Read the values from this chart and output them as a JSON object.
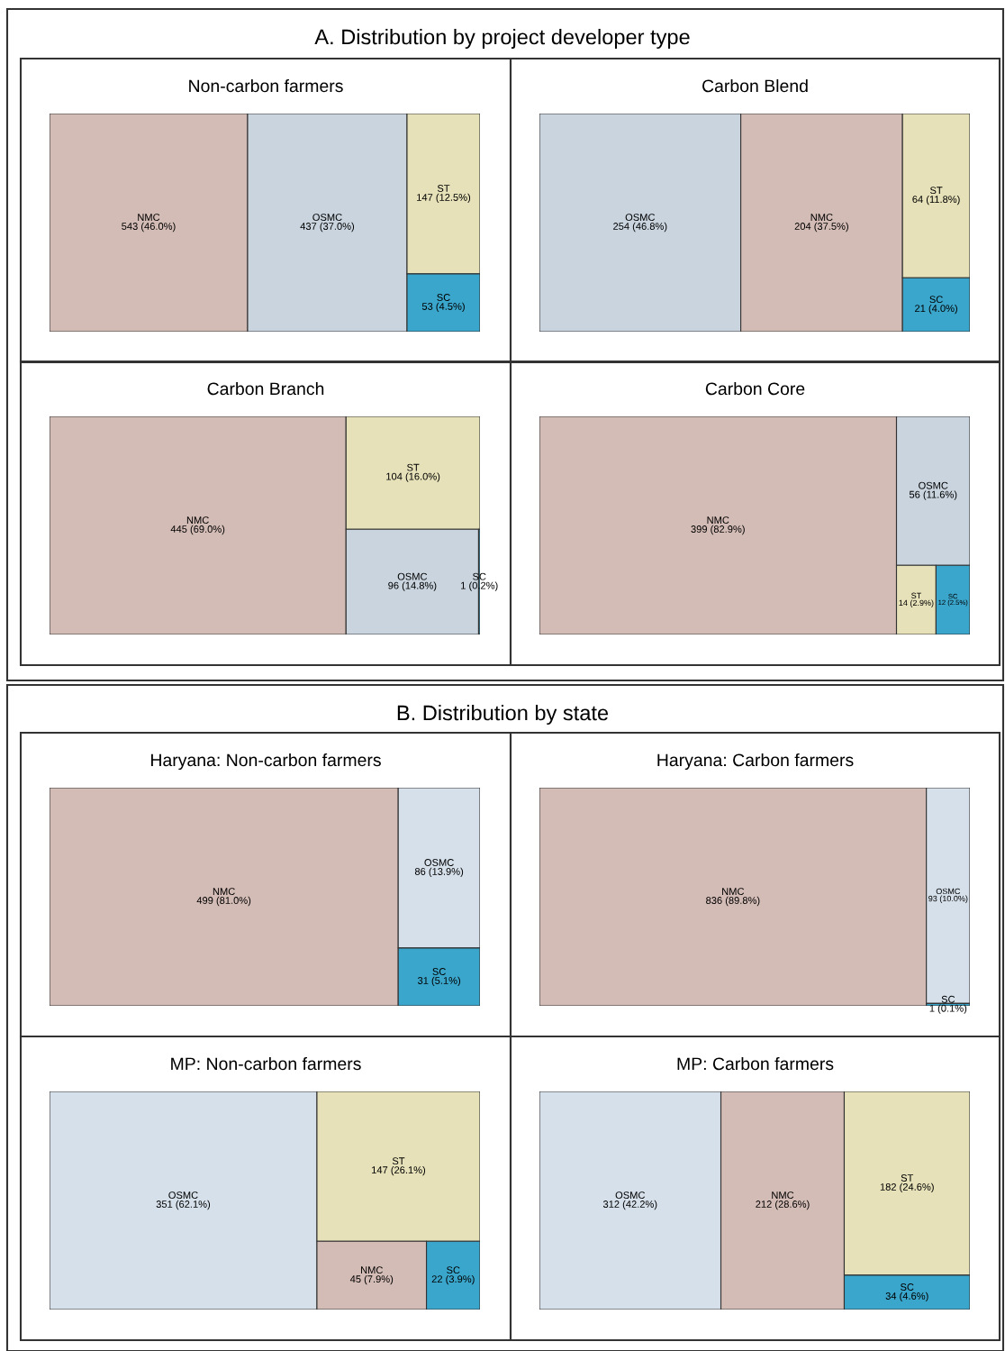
{
  "chart_data": [
    {
      "type": "other",
      "title": "Non-carbon farmers",
      "annotations": [
        "A. Distribution by project developer type"
      ],
      "categories": [
        "NMC",
        "OSMC",
        "ST",
        "SC"
      ],
      "values": [
        543,
        437,
        147,
        53
      ],
      "value_labels": [
        "543 (46.0%)",
        "437 (37.0%)",
        "147 (12.5%)",
        "53 (4.5%)"
      ],
      "colors": [
        "#d4bcb6",
        "#c9d4de",
        "#e6e1b8",
        "#3aa6cc"
      ]
    },
    {
      "type": "other",
      "title": "Carbon Blend",
      "categories": [
        "OSMC",
        "NMC",
        "ST",
        "SC"
      ],
      "values": [
        254,
        204,
        64,
        21
      ],
      "value_labels": [
        "254 (46.8%)",
        "204 (37.5%)",
        "64 (11.8%)",
        "21 (4.0%)"
      ],
      "colors": [
        "#c9d4de",
        "#d4bcb6",
        "#e6e1b8",
        "#3aa6cc"
      ]
    },
    {
      "type": "other",
      "title": "Carbon Branch",
      "categories": [
        "NMC",
        "ST",
        "OSMC",
        "SC"
      ],
      "values": [
        445,
        104,
        96,
        1
      ],
      "value_labels": [
        "445 (69.0%)",
        "104 (16.0%)",
        "96 (14.8%)",
        "1 (0.2%)"
      ],
      "colors": [
        "#d4bcb6",
        "#e6e1b8",
        "#c9d4de",
        "#3aa6cc"
      ]
    },
    {
      "type": "other",
      "title": "Carbon Core",
      "categories": [
        "NMC",
        "OSMC",
        "ST",
        "SC"
      ],
      "values": [
        399,
        56,
        14,
        12
      ],
      "value_labels": [
        "399 (82.9%)",
        "56 (11.6%)",
        "14 (2.9%)",
        "12 (2.5%)"
      ],
      "colors": [
        "#d4bcb6",
        "#c9d4de",
        "#e6e1b8",
        "#3aa6cc"
      ]
    },
    {
      "type": "other",
      "title": "Haryana: Non-carbon farmers",
      "annotations": [
        "B. Distribution by state"
      ],
      "categories": [
        "NMC",
        "OSMC",
        "SC"
      ],
      "values": [
        499,
        86,
        31
      ],
      "value_labels": [
        "499 (81.0%)",
        "86 (13.9%)",
        "31 (5.1%)"
      ],
      "colors": [
        "#d4bcb6",
        "#d6e0ea",
        "#3aa6cc"
      ]
    },
    {
      "type": "other",
      "title": "Haryana: Carbon farmers",
      "categories": [
        "NMC",
        "OSMC",
        "SC"
      ],
      "values": [
        836,
        93,
        1
      ],
      "value_labels": [
        "836 (89.8%)",
        "93 (10.0%)",
        "1 (0.1%)"
      ],
      "colors": [
        "#d4bcb6",
        "#d6e0ea",
        "#3aa6cc"
      ]
    },
    {
      "type": "other",
      "title": "MP: Non-carbon farmers",
      "categories": [
        "OSMC",
        "ST",
        "NMC",
        "SC"
      ],
      "values": [
        351,
        147,
        45,
        22
      ],
      "value_labels": [
        "351 (62.1%)",
        "147 (26.1%)",
        "45 (7.9%)",
        "22 (3.9%)"
      ],
      "colors": [
        "#d6e0ea",
        "#e6e1b8",
        "#d4bcb6",
        "#3aa6cc"
      ]
    },
    {
      "type": "other",
      "title": "MP: Carbon farmers",
      "categories": [
        "OSMC",
        "NMC",
        "ST",
        "SC"
      ],
      "values": [
        312,
        212,
        182,
        34
      ],
      "value_labels": [
        "312 (42.2%)",
        "212 (28.6%)",
        "182 (24.6%)",
        "34 (4.6%)"
      ],
      "colors": [
        "#d6e0ea",
        "#d4bcb6",
        "#e6e1b8",
        "#3aa6cc"
      ]
    }
  ]
}
